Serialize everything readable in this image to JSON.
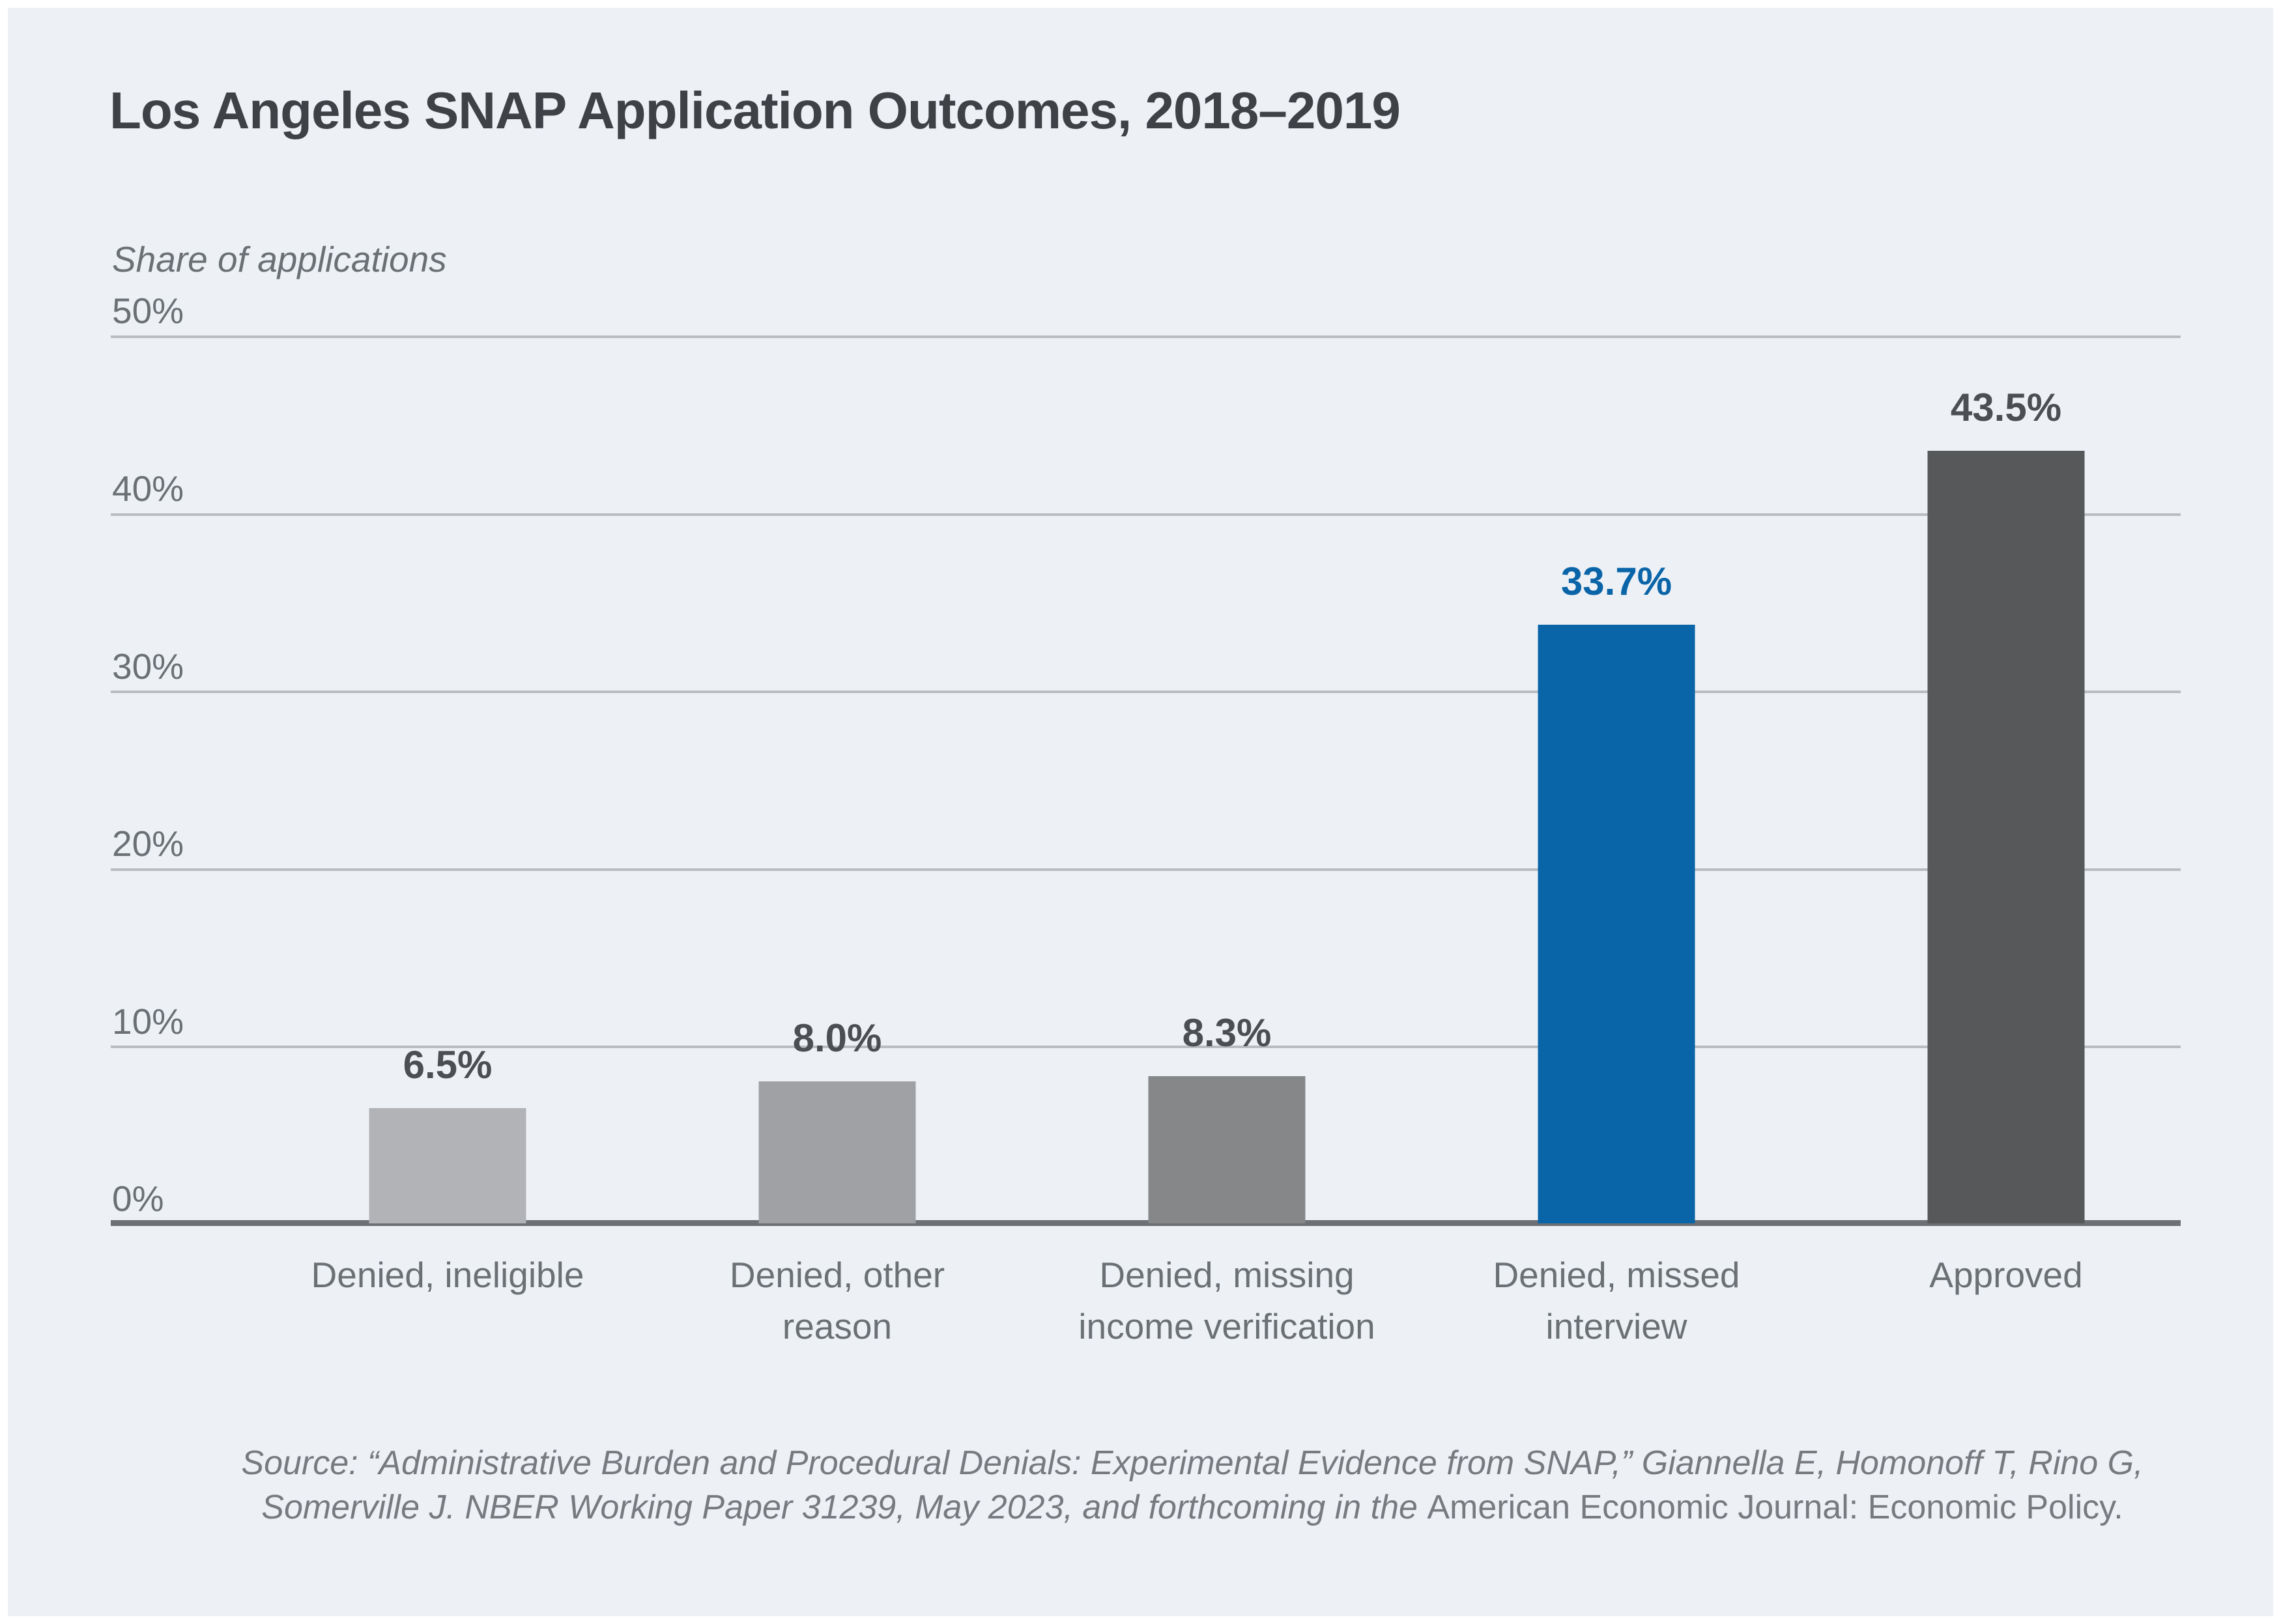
{
  "title": "Los Angeles SNAP Application Outcomes, 2018–2019",
  "axis": {
    "y_label": "Share of applications",
    "ticks": [
      "50%",
      "40%",
      "30%",
      "20%",
      "10%",
      "0%"
    ]
  },
  "bars": [
    {
      "value": 6.5,
      "value_label": "6.5%",
      "label_line1": "Denied, ineligible",
      "label_line2": "",
      "color": "#b2b3b6",
      "value_color": "#4b4f53"
    },
    {
      "value": 8.0,
      "value_label": "8.0%",
      "label_line1": "Denied, other",
      "label_line2": "reason",
      "color": "#9fa1a4",
      "value_color": "#4b4f53"
    },
    {
      "value": 8.3,
      "value_label": "8.3%",
      "label_line1": "Denied, missing",
      "label_line2": "income verification",
      "color": "#858789",
      "value_color": "#4b4f53"
    },
    {
      "value": 33.7,
      "value_label": "33.7%",
      "label_line1": "Denied, missed",
      "label_line2": "interview",
      "color": "#0a64a8",
      "value_color": "#0a64a8"
    },
    {
      "value": 43.5,
      "value_label": "43.5%",
      "label_line1": "Approved",
      "label_line2": "",
      "color": "#57585a",
      "value_color": "#4b4f53"
    }
  ],
  "source": {
    "line1": "Source: “Administrative Burden and Procedural Denials: Experimental Evidence from SNAP,” Giannella E, Homonoff T, Rino G,",
    "line2_italic": "Somerville J. NBER Working Paper 31239, May 2023, and forthcoming in the ",
    "line2_roman": "American Economic Journal: Economic Policy."
  },
  "colors": {
    "background": "#edf1f6",
    "accent_blue": "#0a64a8",
    "grid": "#b9bdc2",
    "axis_line": "#6d7175",
    "title_text": "#3e4247",
    "axis_text": "#6b7075",
    "value_text": "#4b4f53",
    "source_text": "#777b80"
  },
  "chart_data": {
    "type": "bar",
    "title": "Los Angeles SNAP Application Outcomes, 2018–2019",
    "xlabel": "",
    "ylabel": "Share of applications",
    "categories": [
      "Denied, ineligible",
      "Denied, other reason",
      "Denied, missing income verification",
      "Denied, missed interview",
      "Approved"
    ],
    "values": [
      6.5,
      8.0,
      8.3,
      33.7,
      43.5
    ],
    "value_labels": [
      "6.5%",
      "8.0%",
      "8.3%",
      "33.7%",
      "43.5%"
    ],
    "ylim": [
      0,
      50
    ],
    "yticks": [
      0,
      10,
      20,
      30,
      40,
      50
    ],
    "grid": true,
    "legend": false,
    "highlight_category": "Denied, missed interview",
    "bar_colors": [
      "#b2b3b6",
      "#9fa1a4",
      "#858789",
      "#0a64a8",
      "#57585a"
    ]
  }
}
